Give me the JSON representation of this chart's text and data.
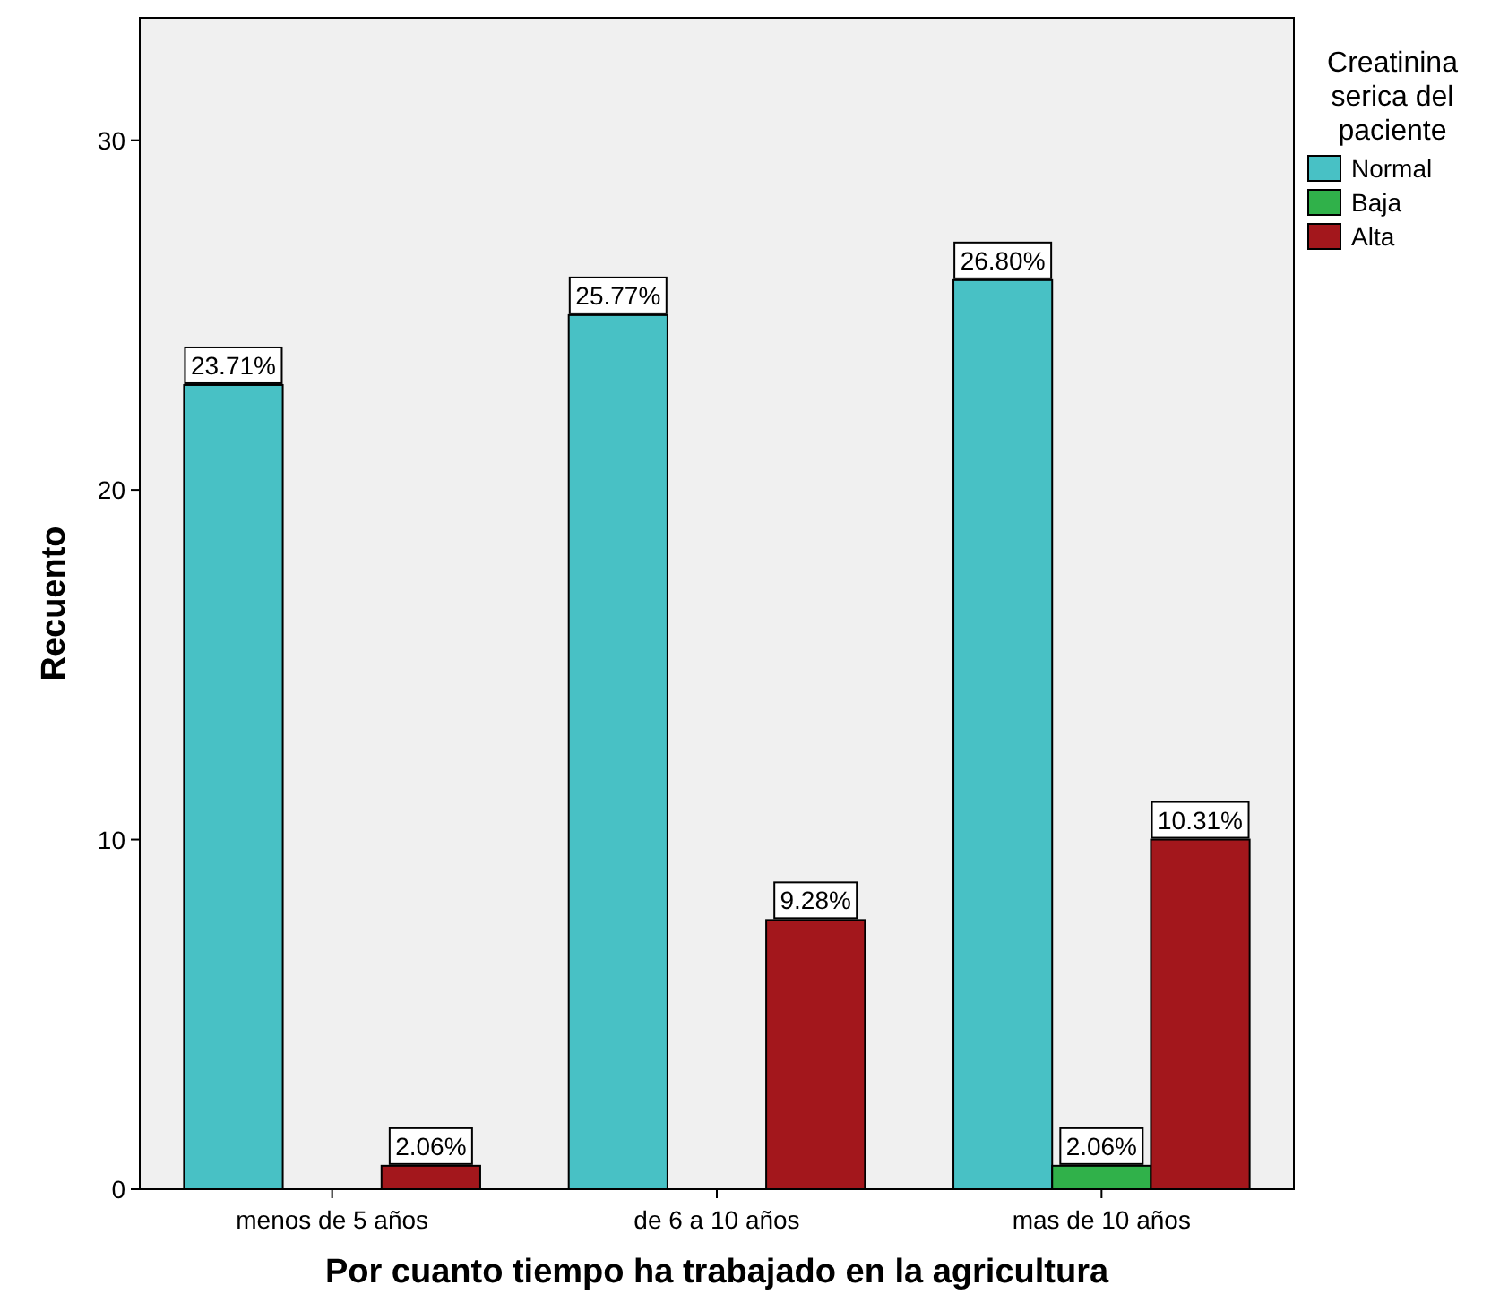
{
  "chart_data": {
    "type": "bar",
    "xlabel": "Por cuanto tiempo ha trabajado en la agricultura",
    "ylabel": "Recuento",
    "legend_title": "Creatinina serica del paciente",
    "legend": "top right",
    "grid": false,
    "categories": [
      "menos de 5 años",
      "de 6 a 10 años",
      "mas de 10 años"
    ],
    "ylim": [
      0,
      33.5
    ],
    "yticks": [
      0,
      10,
      20,
      30
    ],
    "series": [
      {
        "name": "Normal",
        "color": "#48c1c5",
        "values": [
          23,
          25,
          26
        ]
      },
      {
        "name": "Baja",
        "color": "#30b14a",
        "values": [
          null,
          null,
          0.67
        ]
      },
      {
        "name": "Alta",
        "color": "#a3171c",
        "values": [
          0.67,
          7.7,
          10
        ]
      }
    ],
    "annotations": [
      "23.71%",
      "25.77%",
      "26.80%",
      "2.06%",
      "2.06%",
      "9.28%",
      "10.31%"
    ]
  }
}
